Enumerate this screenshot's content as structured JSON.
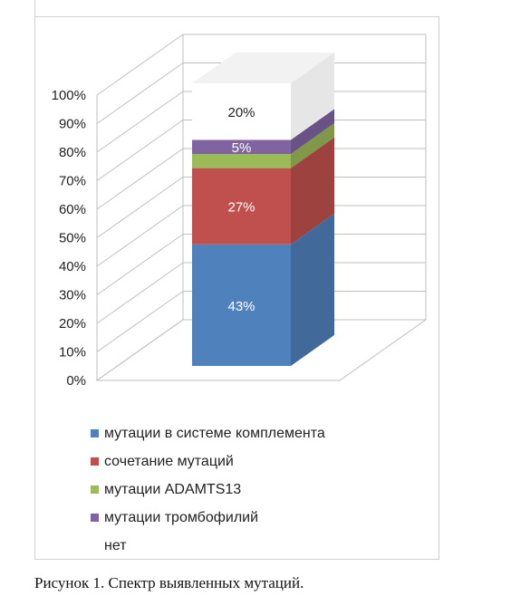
{
  "chart_data": {
    "type": "bar",
    "variant": "3d-stacked-percent",
    "categories": [
      ""
    ],
    "yticks": [
      "0%",
      "10%",
      "20%",
      "30%",
      "40%",
      "50%",
      "60%",
      "70%",
      "80%",
      "90%",
      "100%"
    ],
    "ylim": [
      0,
      100
    ],
    "grid": true,
    "legend_position": "bottom",
    "series": [
      {
        "name": "мутации в системе комплемента",
        "values": [
          43
        ],
        "label": "43%",
        "color": "#4F81BD",
        "label_color": "#ffffff"
      },
      {
        "name": "сочетание мутаций",
        "values": [
          27
        ],
        "label": "27%",
        "color": "#C0504D",
        "label_color": "#ffffff"
      },
      {
        "name": "мутации ADAMTS13",
        "values": [
          5
        ],
        "label": "",
        "color": "#9BBB59",
        "label_color": "#ffffff"
      },
      {
        "name": "мутации тромбофилий",
        "values": [
          5
        ],
        "label": "5%",
        "color": "#8064A2",
        "label_color": "#ffffff"
      },
      {
        "name": "нет",
        "values": [
          20
        ],
        "label": "20%",
        "color": "#FFFFFF",
        "label_color": "#222222"
      }
    ]
  },
  "caption": "Рисунок 1. Спектр выявленных мутаций."
}
